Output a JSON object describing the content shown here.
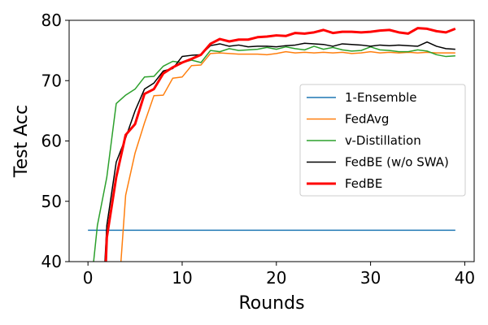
{
  "chart_data": {
    "type": "line",
    "title": "",
    "xlabel": "Rounds",
    "ylabel": "Test Acc",
    "xlim": [
      -2,
      41
    ],
    "ylim": [
      40,
      80
    ],
    "xticks": [
      0,
      10,
      20,
      30,
      40
    ],
    "yticks": [
      40,
      50,
      60,
      70,
      80
    ],
    "grid": false,
    "legend": "center-right",
    "series": [
      {
        "name": "1-Ensemble",
        "color": "#1f77b4",
        "width": 1.5,
        "x": [
          0,
          39
        ],
        "y": [
          45.2,
          45.2
        ]
      },
      {
        "name": "FedAvg",
        "color": "#ff7f0e",
        "width": 1.5,
        "x": [
          3.5,
          4,
          5,
          6,
          7,
          8,
          9,
          10,
          11,
          12,
          13,
          14,
          15,
          16,
          17,
          18,
          19,
          20,
          21,
          22,
          23,
          24,
          25,
          26,
          27,
          28,
          29,
          30,
          31,
          32,
          33,
          34,
          35,
          36,
          37,
          38,
          39
        ],
        "y": [
          40,
          51,
          58,
          63,
          67.5,
          67.6,
          70.4,
          70.6,
          72.5,
          72.6,
          74.5,
          74.6,
          74.5,
          74.4,
          74.4,
          74.4,
          74.3,
          74.5,
          74.8,
          74.6,
          74.7,
          74.6,
          74.7,
          74.6,
          74.7,
          74.5,
          74.6,
          74.8,
          74.6,
          74.7,
          74.6,
          74.7,
          74.6,
          74.7,
          74.6,
          74.6,
          74.6
        ]
      },
      {
        "name": "v-Distillation",
        "color": "#2ca02c",
        "width": 1.5,
        "x": [
          0.6,
          1,
          2,
          3,
          4,
          5,
          6,
          7,
          8,
          9,
          10,
          11,
          12,
          13,
          14,
          15,
          16,
          17,
          18,
          19,
          20,
          21,
          22,
          23,
          24,
          25,
          26,
          27,
          28,
          29,
          30,
          31,
          32,
          33,
          34,
          35,
          36,
          37,
          38,
          39
        ],
        "y": [
          40,
          46,
          54,
          66.2,
          67.6,
          68.6,
          70.6,
          70.7,
          72.4,
          73.2,
          73,
          73.4,
          73,
          75,
          74.8,
          75.3,
          75,
          75.1,
          75.2,
          75.5,
          75.2,
          75.6,
          75.3,
          75.1,
          75.7,
          75.2,
          75.5,
          75.1,
          74.9,
          75,
          75.6,
          75.1,
          75,
          74.8,
          74.8,
          75.1,
          74.9,
          74.3,
          74,
          74.1
        ]
      },
      {
        "name": "FedBE (w/o SWA)",
        "color": "#000000",
        "width": 1.5,
        "x": [
          1.8,
          2,
          3,
          4,
          5,
          6,
          7,
          8,
          9,
          10,
          11,
          12,
          13,
          14,
          15,
          16,
          17,
          18,
          19,
          20,
          21,
          22,
          23,
          24,
          25,
          26,
          27,
          28,
          29,
          30,
          31,
          32,
          33,
          34,
          35,
          36,
          37,
          38,
          39
        ],
        "y": [
          40,
          46,
          56.5,
          60.5,
          65,
          68.6,
          69.6,
          71.6,
          72,
          74,
          74.2,
          74.3,
          75.8,
          76.1,
          75.7,
          75.9,
          75.6,
          75.7,
          75.7,
          75.6,
          75.8,
          75.9,
          76.2,
          76.1,
          76,
          75.7,
          76.1,
          76,
          75.9,
          75.7,
          75.9,
          75.8,
          75.9,
          75.8,
          75.7,
          76.4,
          75.7,
          75.3,
          75.2
        ]
      },
      {
        "name": "FedBE",
        "color": "#ff0000",
        "width": 3,
        "x": [
          1.9,
          2,
          3,
          4,
          5,
          6,
          7,
          8,
          9,
          10,
          11,
          12,
          13,
          14,
          15,
          16,
          17,
          18,
          19,
          20,
          21,
          22,
          23,
          24,
          25,
          26,
          27,
          28,
          29,
          30,
          31,
          32,
          33,
          34,
          35,
          36,
          37,
          38,
          39
        ],
        "y": [
          40,
          44,
          54,
          61,
          62.8,
          67.8,
          68.6,
          71.2,
          72.2,
          73,
          73.6,
          74.3,
          76.1,
          76.9,
          76.5,
          76.8,
          76.8,
          77.2,
          77.3,
          77.5,
          77.4,
          77.9,
          77.8,
          78,
          78.4,
          77.9,
          78.1,
          78.1,
          78,
          78.1,
          78.3,
          78.4,
          78,
          77.8,
          78.7,
          78.6,
          78.2,
          78,
          78.6
        ]
      }
    ]
  }
}
